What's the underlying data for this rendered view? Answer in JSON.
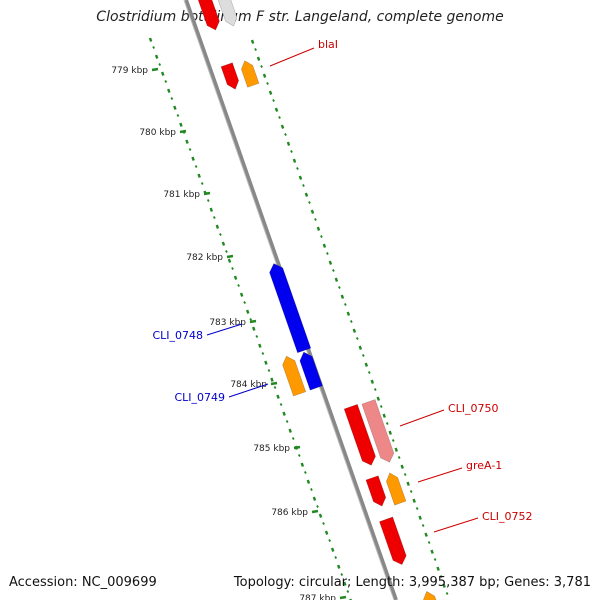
{
  "title": "Clostridium botulinum F str. Langeland, complete genome",
  "footer": {
    "accession": "Accession: NC_009699",
    "stats": "Topology: circular; Length: 3,995,387 bp; Genes: 3,781"
  },
  "ticks": [
    {
      "label": "779 kbp",
      "kbp": 779
    },
    {
      "label": "780 kbp",
      "kbp": 780
    },
    {
      "label": "781 kbp",
      "kbp": 781
    },
    {
      "label": "782 kbp",
      "kbp": 782
    },
    {
      "label": "783 kbp",
      "kbp": 783
    },
    {
      "label": "784 kbp",
      "kbp": 784
    },
    {
      "label": "785 kbp",
      "kbp": 785
    },
    {
      "label": "786 kbp",
      "kbp": 786
    },
    {
      "label": "787 kbp",
      "kbp": 787
    }
  ],
  "gene_labels": [
    {
      "name": "blaI",
      "color": "#cc0000"
    },
    {
      "name": "CLI_0748",
      "color": "#0000cc"
    },
    {
      "name": "CLI_0749",
      "color": "#0000cc"
    },
    {
      "name": "CLI_0750",
      "color": "#cc0000"
    },
    {
      "name": "greA-1",
      "color": "#cc0000"
    },
    {
      "name": "CLI_0752",
      "color": "#cc0000"
    }
  ],
  "colors": {
    "backbone": "#888888",
    "tick_track": "#228822",
    "cds_forward": "#ee0000",
    "cds_reverse": "#0000ee",
    "cds_pseudo": "#ee8888",
    "rna_feature": "#ff9900",
    "faded_feature": "#dddddd"
  }
}
